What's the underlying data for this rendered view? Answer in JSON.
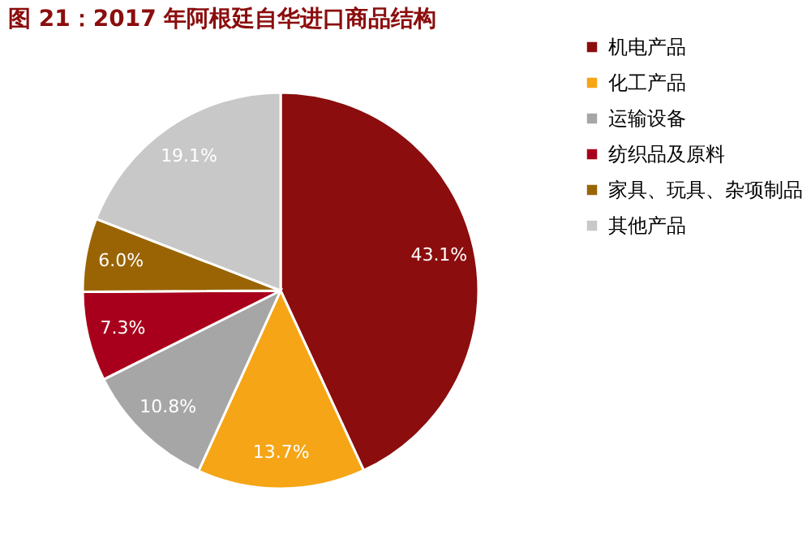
{
  "chart_data": {
    "type": "pie",
    "title": "图 21：2017 年阿根廷自华进口商品结构",
    "categories": [
      "机电产品",
      "化工产品",
      "运输设备",
      "纺织品及原料",
      "家具、玩具、杂项制品",
      "其他产品"
    ],
    "values": [
      43.1,
      13.7,
      10.8,
      7.3,
      6.0,
      19.1
    ],
    "colors": [
      "#8b0d0d",
      "#f5a515",
      "#a6a6a6",
      "#a8001c",
      "#9a6404",
      "#c8c8c8"
    ],
    "value_labels": [
      "43.1%",
      "13.7%",
      "10.8%",
      "7.3%",
      "6.0%",
      "19.1%"
    ],
    "legend": "right"
  }
}
